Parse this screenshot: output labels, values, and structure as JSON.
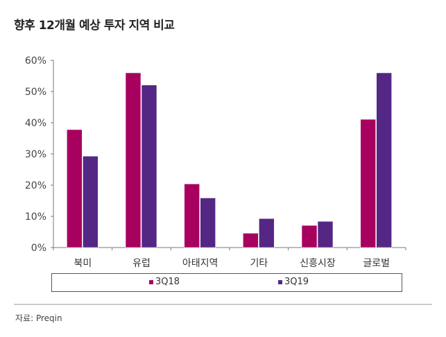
{
  "title": "향후 12개월 예상 투자 지역 비교",
  "source": "자료: Preqin",
  "chart_data": {
    "type": "bar",
    "title": "향후 12개월 예상 투자 지역 비교",
    "categories": [
      "북미",
      "유럽",
      "아태지역",
      "기타",
      "신흥시장",
      "글로벌"
    ],
    "series": [
      {
        "name": "3Q18",
        "color": "#A8005F",
        "values": [
          37.8,
          56.0,
          20.4,
          4.6,
          7.1,
          41.1
        ]
      },
      {
        "name": "3Q19",
        "color": "#542785",
        "values": [
          29.3,
          52.1,
          15.9,
          9.3,
          8.4,
          56.0
        ]
      }
    ],
    "ylim": [
      0,
      60
    ],
    "yticks": [
      0,
      10,
      20,
      30,
      40,
      50,
      60
    ],
    "ytick_labels": [
      "0%",
      "10%",
      "20%",
      "30%",
      "40%",
      "50%",
      "60%"
    ],
    "grid": false,
    "legend": "bottom"
  }
}
